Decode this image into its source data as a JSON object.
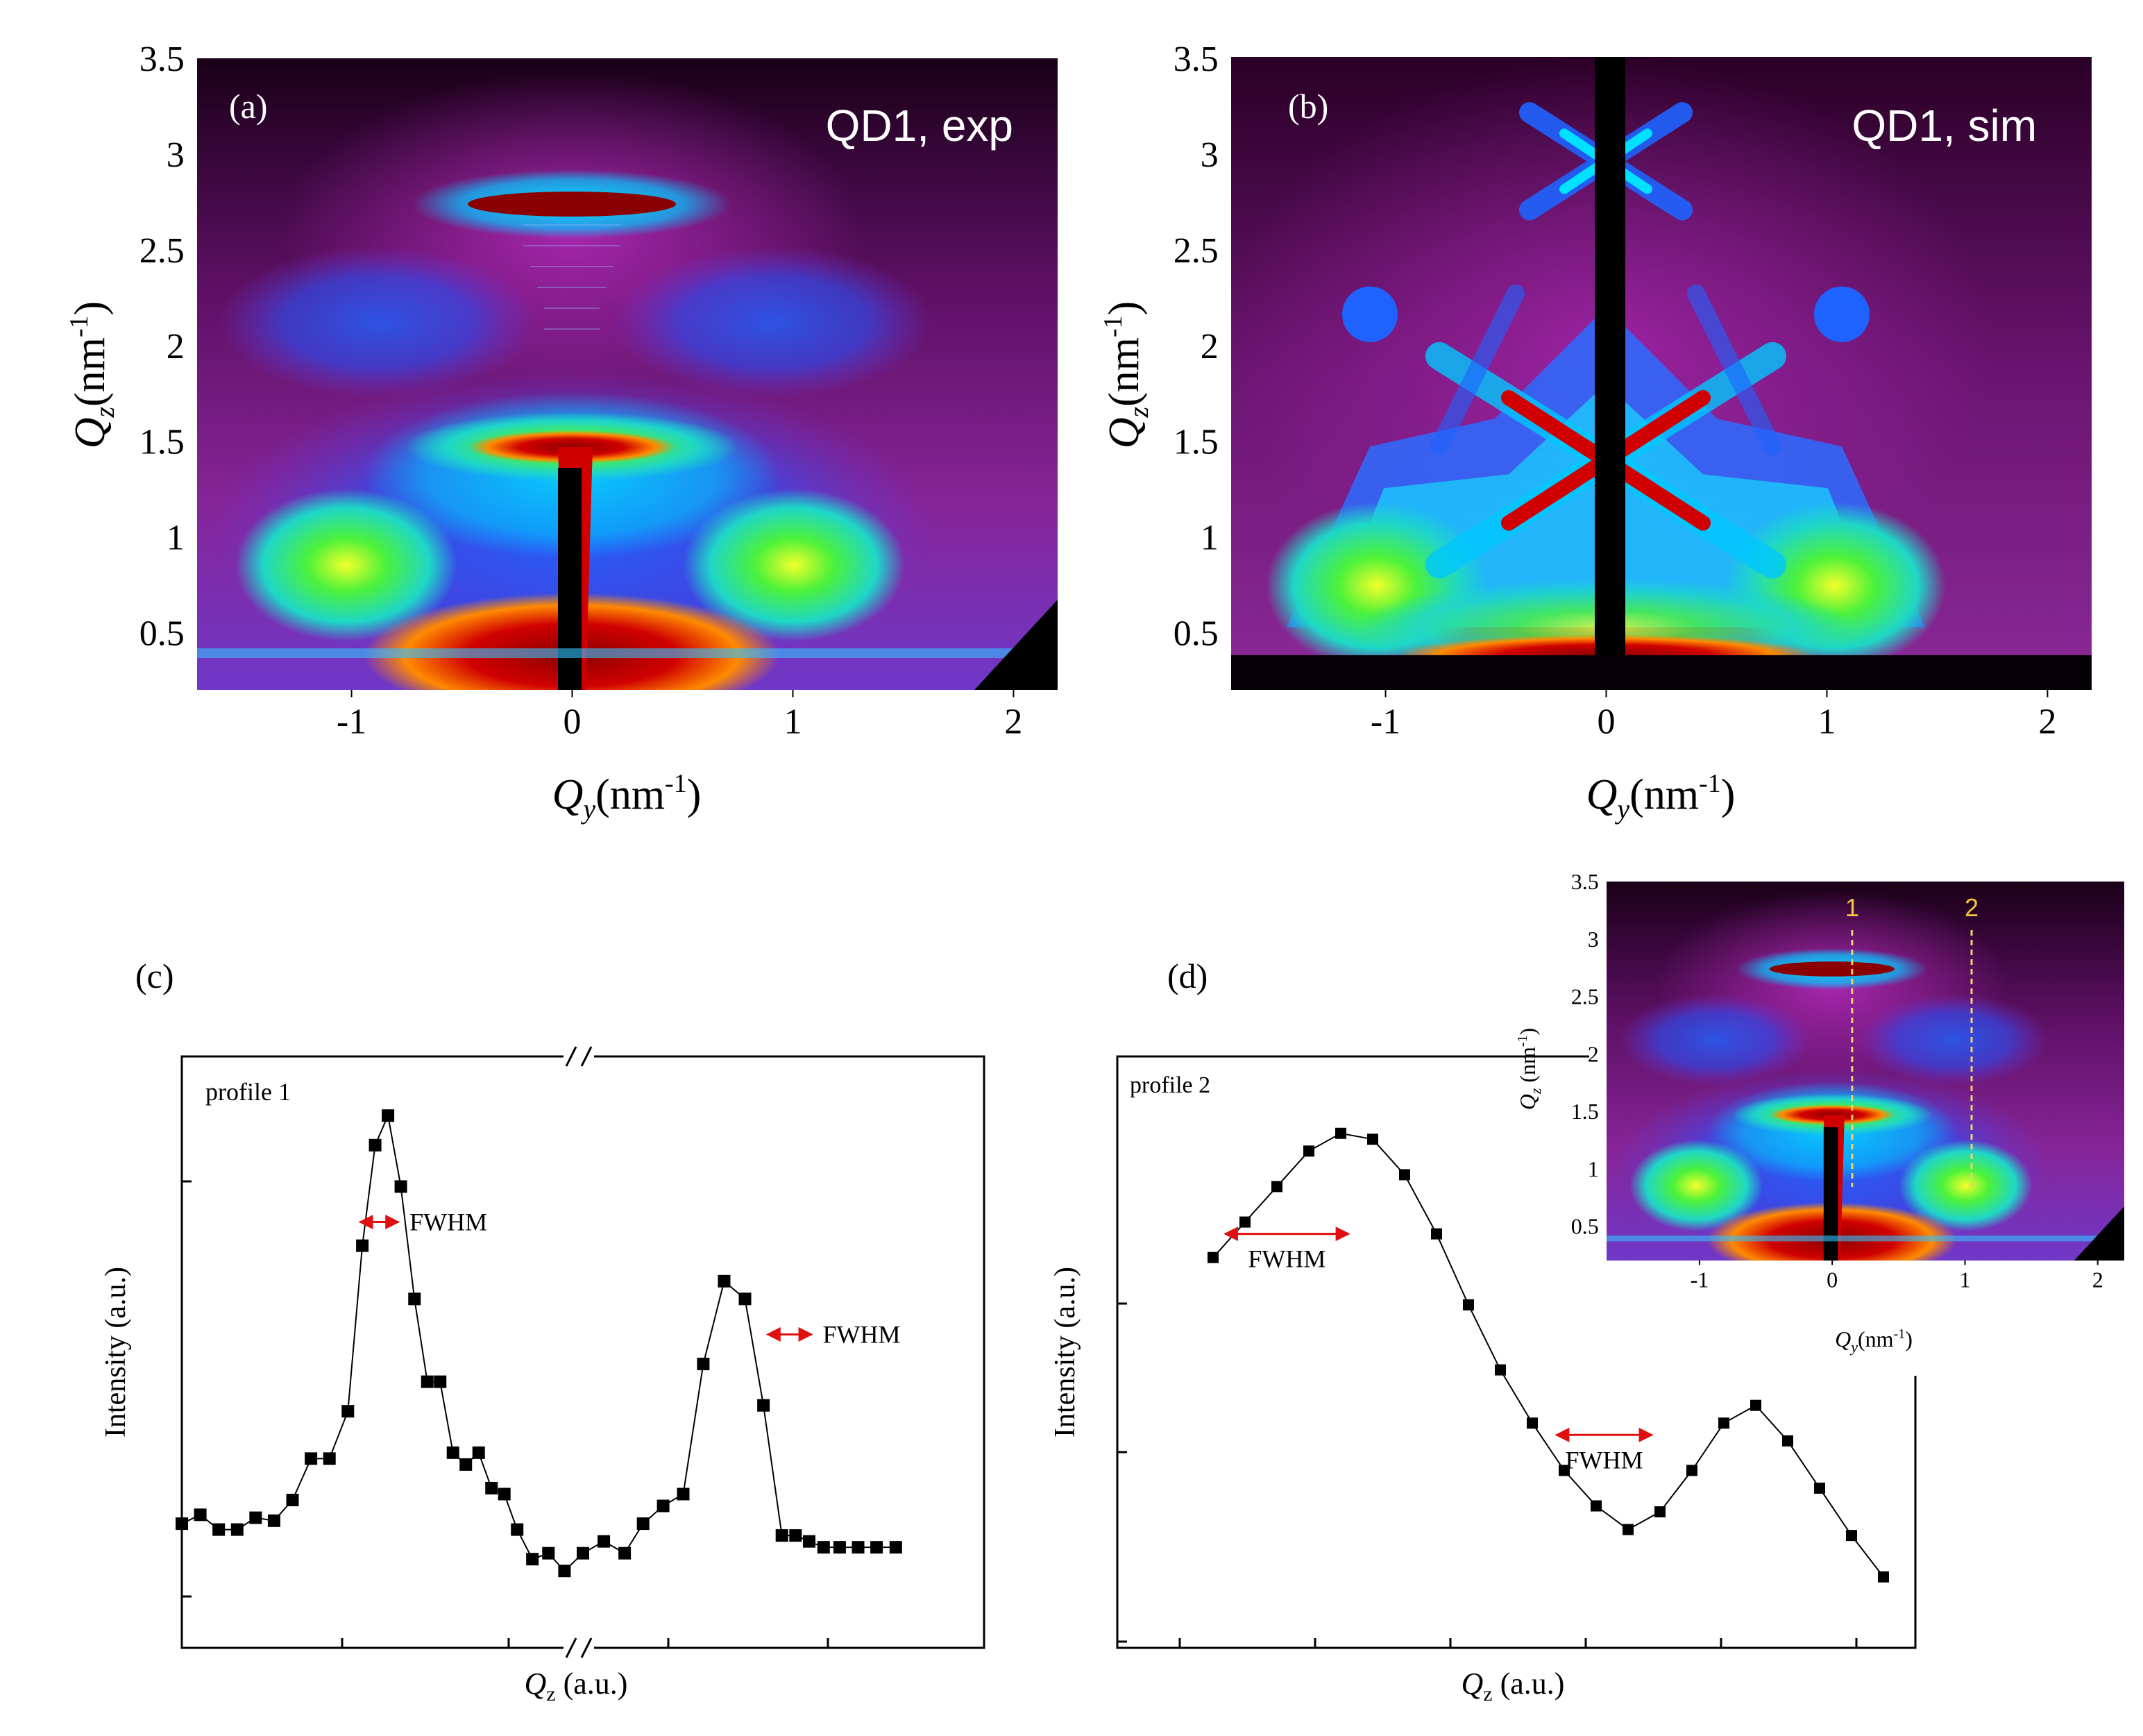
{
  "chart_data": [
    {
      "id": "a",
      "type": "heatmap",
      "panel_label": "(a)",
      "title": "QD1, exp",
      "xlabel_sym": "Q",
      "xlabel_sub": "y",
      "xlabel_unit": "(nm",
      "xlabel_sup": "-1",
      "xlabel_close": ")",
      "ylabel_sym": "Q",
      "ylabel_sub": "z",
      "ylabel_unit": "(nm",
      "ylabel_sup": "-1",
      "ylabel_close": ")",
      "xlim": [
        -1.7,
        2.2
      ],
      "ylim": [
        0.2,
        3.5
      ],
      "xticks": [
        -1,
        0,
        1,
        2
      ],
      "xtick_labels": [
        "-1",
        "0",
        "1",
        "2"
      ],
      "yticks": [
        0.5,
        1,
        1.5,
        2,
        2.5,
        3,
        3.5
      ],
      "ytick_labels": [
        "0.5",
        "1",
        "1.5",
        "2",
        "2.5",
        "3",
        "3.5"
      ]
    },
    {
      "id": "b",
      "type": "heatmap",
      "panel_label": "(b)",
      "title": "QD1, sim",
      "xlabel_sym": "Q",
      "xlabel_sub": "y",
      "xlabel_unit": "(nm",
      "xlabel_sup": "-1",
      "xlabel_close": ")",
      "ylabel_sym": "Q",
      "ylabel_sub": "z",
      "ylabel_unit": "(nm",
      "ylabel_sup": "-1",
      "ylabel_close": ")",
      "xlim": [
        -1.7,
        2.2
      ],
      "ylim": [
        0.2,
        3.5
      ],
      "xticks": [
        -1,
        0,
        1,
        2
      ],
      "xtick_labels": [
        "-1",
        "0",
        "1",
        "2"
      ],
      "yticks": [
        0.5,
        1,
        1.5,
        2,
        2.5,
        3,
        3.5
      ],
      "ytick_labels": [
        "0.5",
        "1",
        "1.5",
        "2",
        "2.5",
        "3",
        "3.5"
      ]
    },
    {
      "id": "c",
      "type": "line",
      "panel_label": "(c)",
      "series_label": "profile 1",
      "xlabel_sym": "Q",
      "xlabel_sub": "z",
      "xlabel_unit": " (a.u.)",
      "ylabel": "Intensity (a.u.)",
      "annotation": "FWHM",
      "xlim": [
        0,
        1
      ],
      "ylim": [
        0,
        1
      ],
      "axis_break": true,
      "x": [
        0.0,
        0.023,
        0.046,
        0.069,
        0.092,
        0.115,
        0.138,
        0.161,
        0.184,
        0.207,
        0.225,
        0.241,
        0.257,
        0.273,
        0.29,
        0.306,
        0.322,
        0.338,
        0.354,
        0.37,
        0.386,
        0.402,
        0.418,
        0.437,
        0.457,
        0.477,
        0.5,
        0.526,
        0.552,
        0.575,
        0.6,
        0.625,
        0.65,
        0.676,
        0.702,
        0.725,
        0.748,
        0.765,
        0.782,
        0.8,
        0.82,
        0.843,
        0.866,
        0.89
      ],
      "y": [
        0.21,
        0.225,
        0.2,
        0.2,
        0.22,
        0.215,
        0.25,
        0.32,
        0.32,
        0.4,
        0.68,
        0.85,
        0.9,
        0.78,
        0.59,
        0.45,
        0.45,
        0.33,
        0.31,
        0.33,
        0.27,
        0.26,
        0.2,
        0.15,
        0.16,
        0.13,
        0.16,
        0.18,
        0.16,
        0.21,
        0.24,
        0.26,
        0.48,
        0.62,
        0.59,
        0.41,
        0.19,
        0.19,
        0.18,
        0.17,
        0.17,
        0.17,
        0.17,
        0.17
      ],
      "fwhm_marks": [
        {
          "x1": 0.222,
          "x2": 0.27,
          "y": 0.72
        },
        {
          "x1": 0.73,
          "x2": 0.785,
          "y": 0.53
        }
      ]
    },
    {
      "id": "d",
      "type": "line",
      "panel_label": "(d)",
      "series_label": "profile 2",
      "xlabel_sym": "Q",
      "xlabel_sub": "z",
      "xlabel_unit": " (a.u.)",
      "ylabel": "Intensity (a.u.)",
      "annotation": "FWHM",
      "xlim": [
        0,
        1
      ],
      "ylim": [
        0,
        1
      ],
      "x": [
        0.12,
        0.16,
        0.2,
        0.24,
        0.28,
        0.32,
        0.36,
        0.4,
        0.44,
        0.48,
        0.52,
        0.56,
        0.6,
        0.64,
        0.68,
        0.72,
        0.76,
        0.8,
        0.84,
        0.88,
        0.92,
        0.96
      ],
      "y": [
        0.66,
        0.72,
        0.78,
        0.84,
        0.87,
        0.86,
        0.8,
        0.7,
        0.58,
        0.47,
        0.38,
        0.3,
        0.24,
        0.2,
        0.23,
        0.3,
        0.38,
        0.41,
        0.35,
        0.27,
        0.19,
        0.12
      ],
      "fwhm_marks": [
        {
          "x1": 0.135,
          "x2": 0.29,
          "y": 0.7
        },
        {
          "x1": 0.55,
          "x2": 0.67,
          "y": 0.36
        }
      ],
      "inset": {
        "type": "heatmap",
        "xlabel_sym": "Q",
        "xlabel_sub": "y",
        "xlabel_unit": "(nm",
        "xlabel_sup": "-1",
        "xlabel_close": ")",
        "ylabel_sym": "Q",
        "ylabel_sub": "z",
        "ylabel_unit": " (nm",
        "ylabel_sup": "-1",
        "ylabel_close": ")",
        "xlim": [
          -1.7,
          2.2
        ],
        "ylim": [
          0.2,
          3.5
        ],
        "xticks": [
          -1,
          0,
          1,
          2
        ],
        "xtick_labels": [
          "-1",
          "0",
          "1",
          "2"
        ],
        "yticks": [
          0.5,
          1,
          1.5,
          2,
          2.5,
          3,
          3.5
        ],
        "ytick_labels": [
          "0.5",
          "1",
          "1.5",
          "2",
          "2.5",
          "3",
          "3.5"
        ],
        "cut_lines": [
          {
            "label": "1",
            "qy": 0.15
          },
          {
            "label": "2",
            "qy": 1.05
          }
        ]
      }
    }
  ]
}
